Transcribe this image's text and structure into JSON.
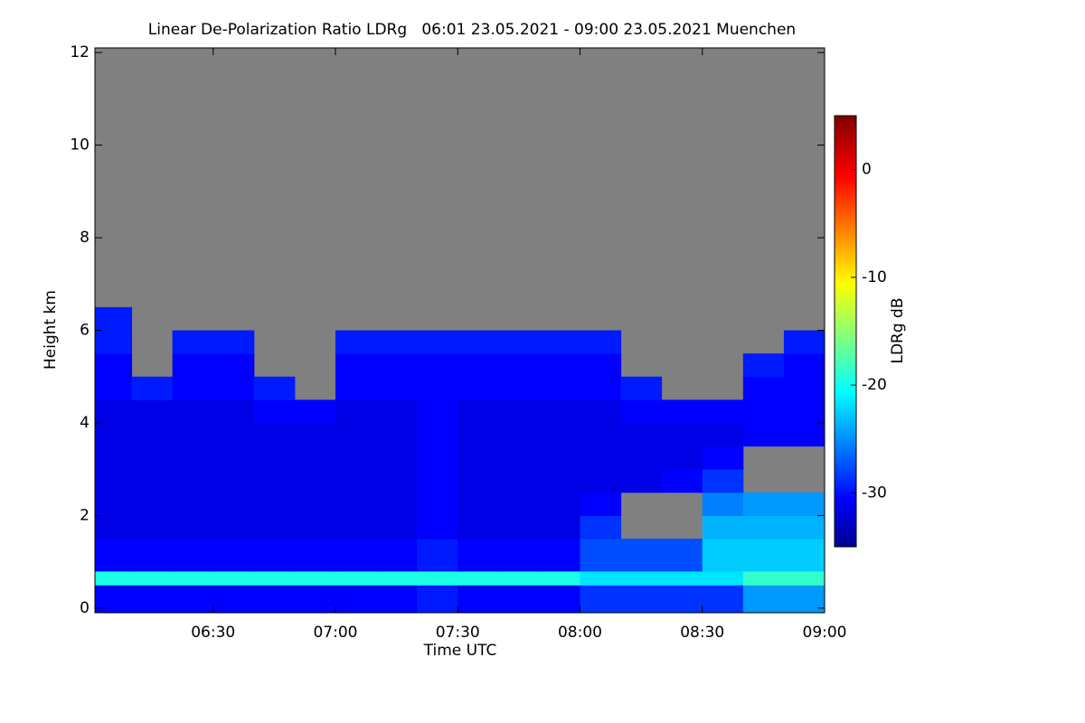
{
  "chart_data": {
    "type": "heatmap",
    "title": "Linear De-Polarization Ratio LDRg   06:01 23.05.2021 - 09:00 23.05.2021 Muenchen",
    "x_label": "Time UTC",
    "y_label": "Height km",
    "colorbar_label": "LDRg dB",
    "colormap": "jet",
    "missing_color": "#808080",
    "xlim": [
      6.0167,
      9.0
    ],
    "xticks": [
      {
        "value": 6.5,
        "label": "06:30"
      },
      {
        "value": 7,
        "label": "07:00"
      },
      {
        "value": 7.5,
        "label": "07:30"
      },
      {
        "value": 8,
        "label": "08:00"
      },
      {
        "value": 8.5,
        "label": "08:30"
      },
      {
        "value": 9,
        "label": "09:00"
      }
    ],
    "ylim": [
      -0.1,
      12.1
    ],
    "yticks": [
      0,
      2,
      4,
      6,
      8,
      10,
      12
    ],
    "zlim": [
      -35,
      5
    ],
    "zticks": [
      0,
      -10,
      -20,
      -30
    ],
    "x_edges": [
      6.0167,
      6.1667,
      6.3333,
      6.5,
      6.6667,
      6.8333,
      7,
      7.1667,
      7.3333,
      7.5,
      7.6667,
      7.8333,
      8,
      8.1667,
      8.3333,
      8.5,
      8.6667,
      8.8333,
      9
    ],
    "y_edges": [
      -0.1,
      0.5,
      0.8,
      1.5,
      2,
      2.5,
      3,
      3.5,
      4,
      4.5,
      5,
      5.5,
      6,
      6.5,
      12.1
    ],
    "z": [
      [
        -30,
        -30,
        -30,
        -30,
        -30,
        -30,
        -30,
        -30,
        -29,
        -30,
        -30,
        -30,
        -28,
        -28,
        -28,
        -28,
        -24,
        -24
      ],
      [
        -19,
        -19,
        -19,
        -19,
        -19,
        -19,
        -19,
        -19,
        -19,
        -19,
        -19,
        -19,
        -21,
        -21,
        -21,
        -21,
        -18,
        -18
      ],
      [
        -30,
        -30,
        -30,
        -30,
        -30,
        -30,
        -30,
        -30,
        -29,
        -30,
        -30,
        -30,
        -27,
        -27,
        -27,
        -22,
        -22,
        -22
      ],
      [
        -31,
        -31,
        -31,
        -31,
        -31,
        -31,
        -31,
        -31,
        -30,
        -31,
        -31,
        -31,
        -28,
        null,
        null,
        -23,
        -23,
        -23
      ],
      [
        -31,
        -31,
        -31,
        -31,
        -31,
        -31,
        -31,
        -31,
        -30,
        -31,
        -31,
        -31,
        -30,
        null,
        null,
        -25,
        -24,
        -24
      ],
      [
        -31,
        -31,
        -31,
        -31,
        -31,
        -31,
        -31,
        -31,
        -30,
        -31,
        -31,
        -31,
        -31,
        -31,
        -30,
        -28,
        null,
        null
      ],
      [
        -31,
        -31,
        -31,
        -31,
        -31,
        -31,
        -31,
        -31,
        -30,
        -31,
        -31,
        -31,
        -31,
        -31,
        -31,
        -30,
        null,
        null
      ],
      [
        -31,
        -31,
        -31,
        -31,
        -31,
        -31,
        -31,
        -31,
        -30,
        -31,
        -31,
        -31,
        -31,
        -31,
        -31,
        -31,
        -30,
        -30
      ],
      [
        -31,
        -31,
        -31,
        -31,
        -30,
        -30,
        -31,
        -31,
        -30,
        -31,
        -31,
        -31,
        -31,
        -30,
        -30,
        -30,
        -30,
        -30
      ],
      [
        -30,
        -29,
        -30,
        -30,
        -29,
        null,
        -30,
        -30,
        -30,
        -30,
        -30,
        -30,
        -30,
        -29,
        null,
        null,
        -30,
        -30
      ],
      [
        -30,
        null,
        -30,
        -30,
        null,
        null,
        -30,
        -30,
        -30,
        -30,
        -30,
        -30,
        -30,
        null,
        null,
        null,
        -29,
        -30
      ],
      [
        -29,
        null,
        -29,
        -29,
        null,
        null,
        -29,
        -29,
        -29,
        -29,
        -29,
        -29,
        -29,
        null,
        null,
        null,
        null,
        -29
      ],
      [
        -29,
        null,
        null,
        null,
        null,
        null,
        null,
        null,
        null,
        null,
        null,
        null,
        null,
        null,
        null,
        null,
        null,
        null
      ],
      [
        null,
        null,
        null,
        null,
        null,
        null,
        null,
        null,
        null,
        null,
        null,
        null,
        null,
        null,
        null,
        null,
        null,
        null
      ]
    ]
  }
}
